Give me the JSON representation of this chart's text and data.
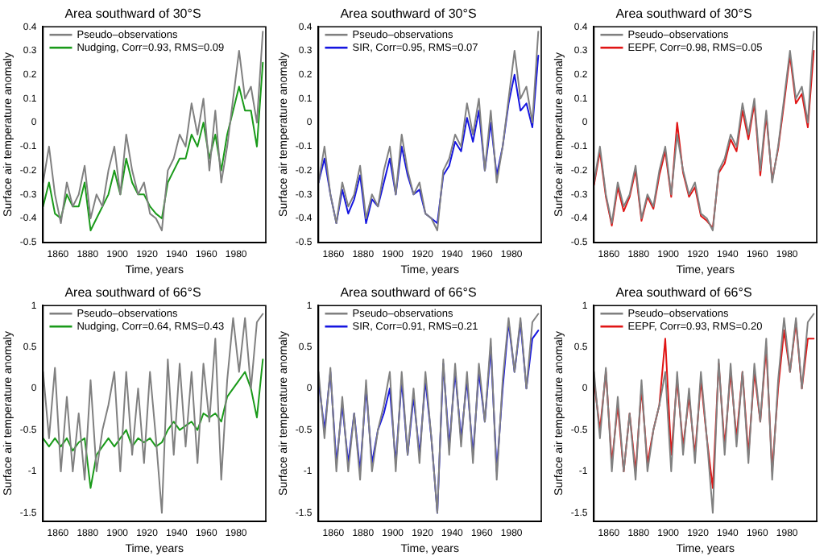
{
  "chart_data": [
    {
      "type": "line",
      "title": "Area southward of 30°S",
      "xlabel": "Time, years",
      "ylabel": "Surface air temperature anomaly",
      "legend": "top left",
      "grid": false,
      "xlim": [
        1850,
        2000
      ],
      "xticks": [
        1860,
        1880,
        1900,
        1920,
        1940,
        1960,
        1980
      ],
      "ylim": [
        -0.5,
        0.4
      ],
      "yticks": [
        -0.5,
        -0.4,
        -0.3,
        -0.2,
        -0.1,
        0,
        0.1,
        0.2,
        0.3,
        0.4
      ],
      "x": [
        1850,
        1854,
        1858,
        1862,
        1866,
        1870,
        1874,
        1878,
        1882,
        1886,
        1890,
        1894,
        1898,
        1902,
        1906,
        1910,
        1914,
        1918,
        1922,
        1926,
        1930,
        1934,
        1938,
        1942,
        1946,
        1950,
        1954,
        1958,
        1962,
        1966,
        1970,
        1974,
        1978,
        1982,
        1986,
        1990,
        1994,
        1998
      ],
      "series": [
        {
          "name": "Pseudo–observations",
          "color": "#808080",
          "values": [
            -0.25,
            -0.1,
            -0.3,
            -0.42,
            -0.25,
            -0.35,
            -0.3,
            -0.18,
            -0.4,
            -0.3,
            -0.35,
            -0.2,
            -0.1,
            -0.3,
            -0.05,
            -0.2,
            -0.3,
            -0.25,
            -0.38,
            -0.4,
            -0.45,
            -0.2,
            -0.15,
            -0.05,
            -0.1,
            0.08,
            -0.05,
            0.1,
            -0.2,
            0.05,
            -0.25,
            -0.1,
            0.1,
            0.3,
            0.1,
            0.15,
            0.0,
            0.38
          ]
        },
        {
          "name": "Nudging, Corr=0.93, RMS=0.09",
          "color": "#1a9a1a",
          "values": [
            -0.35,
            -0.25,
            -0.38,
            -0.4,
            -0.3,
            -0.35,
            -0.35,
            -0.25,
            -0.45,
            -0.4,
            -0.35,
            -0.3,
            -0.2,
            -0.3,
            -0.15,
            -0.25,
            -0.3,
            -0.3,
            -0.35,
            -0.38,
            -0.4,
            -0.25,
            -0.2,
            -0.15,
            -0.15,
            -0.05,
            -0.1,
            0.0,
            -0.15,
            -0.05,
            -0.2,
            -0.05,
            0.05,
            0.15,
            0.05,
            0.05,
            -0.1,
            0.25
          ]
        }
      ]
    },
    {
      "type": "line",
      "title": "Area southward of 30°S",
      "xlabel": "Time, years",
      "ylabel": "Surface air temperature anomaly",
      "legend": "top left",
      "grid": false,
      "xlim": [
        1850,
        2000
      ],
      "xticks": [
        1860,
        1880,
        1900,
        1920,
        1940,
        1960,
        1980
      ],
      "ylim": [
        -0.5,
        0.4
      ],
      "yticks": [
        -0.5,
        -0.4,
        -0.3,
        -0.2,
        -0.1,
        0,
        0.1,
        0.2,
        0.3,
        0.4
      ],
      "x": [
        1850,
        1854,
        1858,
        1862,
        1866,
        1870,
        1874,
        1878,
        1882,
        1886,
        1890,
        1894,
        1898,
        1902,
        1906,
        1910,
        1914,
        1918,
        1922,
        1926,
        1930,
        1934,
        1938,
        1942,
        1946,
        1950,
        1954,
        1958,
        1962,
        1966,
        1970,
        1974,
        1978,
        1982,
        1986,
        1990,
        1994,
        1998
      ],
      "series": [
        {
          "name": "Pseudo–observations",
          "color": "#808080",
          "values": [
            -0.25,
            -0.1,
            -0.3,
            -0.42,
            -0.25,
            -0.35,
            -0.3,
            -0.18,
            -0.4,
            -0.3,
            -0.35,
            -0.2,
            -0.1,
            -0.3,
            -0.05,
            -0.2,
            -0.3,
            -0.25,
            -0.38,
            -0.4,
            -0.45,
            -0.2,
            -0.15,
            -0.05,
            -0.1,
            0.08,
            -0.05,
            0.1,
            -0.2,
            0.05,
            -0.25,
            -0.1,
            0.1,
            0.3,
            0.1,
            0.15,
            0.0,
            0.38
          ]
        },
        {
          "name": "SIR, Corr=0.95, RMS=0.07",
          "color": "#1515e0",
          "values": [
            -0.25,
            -0.15,
            -0.3,
            -0.42,
            -0.28,
            -0.38,
            -0.32,
            -0.22,
            -0.42,
            -0.32,
            -0.35,
            -0.25,
            -0.15,
            -0.3,
            -0.1,
            -0.22,
            -0.3,
            -0.28,
            -0.38,
            -0.4,
            -0.42,
            -0.22,
            -0.18,
            -0.08,
            -0.12,
            0.02,
            -0.08,
            0.05,
            -0.2,
            0.0,
            -0.22,
            -0.1,
            0.08,
            0.2,
            0.05,
            0.08,
            -0.02,
            0.28
          ]
        }
      ]
    },
    {
      "type": "line",
      "title": "Area southward of 30°S",
      "xlabel": "Time, years",
      "ylabel": "Surface air temperature anomaly",
      "legend": "top left",
      "grid": false,
      "xlim": [
        1850,
        2000
      ],
      "xticks": [
        1860,
        1880,
        1900,
        1920,
        1940,
        1960,
        1980
      ],
      "ylim": [
        -0.5,
        0.4
      ],
      "yticks": [
        -0.5,
        -0.4,
        -0.3,
        -0.2,
        -0.1,
        0,
        0.1,
        0.2,
        0.3,
        0.4
      ],
      "x": [
        1850,
        1854,
        1858,
        1862,
        1866,
        1870,
        1874,
        1878,
        1882,
        1886,
        1890,
        1894,
        1898,
        1902,
        1906,
        1910,
        1914,
        1918,
        1922,
        1926,
        1930,
        1934,
        1938,
        1942,
        1946,
        1950,
        1954,
        1958,
        1962,
        1966,
        1970,
        1974,
        1978,
        1982,
        1986,
        1990,
        1994,
        1998
      ],
      "series": [
        {
          "name": "Pseudo–observations",
          "color": "#808080",
          "values": [
            -0.25,
            -0.1,
            -0.3,
            -0.42,
            -0.25,
            -0.35,
            -0.3,
            -0.18,
            -0.4,
            -0.3,
            -0.35,
            -0.2,
            -0.1,
            -0.3,
            -0.05,
            -0.2,
            -0.3,
            -0.25,
            -0.38,
            -0.4,
            -0.45,
            -0.2,
            -0.15,
            -0.05,
            -0.1,
            0.08,
            -0.05,
            0.1,
            -0.2,
            0.05,
            -0.25,
            -0.1,
            0.1,
            0.3,
            0.1,
            0.15,
            0.0,
            0.38
          ]
        },
        {
          "name": "EEPF, Corr=0.98, RMS=0.05",
          "color": "#e01515",
          "values": [
            -0.26,
            -0.12,
            -0.31,
            -0.43,
            -0.27,
            -0.37,
            -0.31,
            -0.2,
            -0.41,
            -0.31,
            -0.36,
            -0.22,
            -0.12,
            -0.31,
            0.0,
            -0.21,
            -0.31,
            -0.27,
            -0.39,
            -0.41,
            -0.44,
            -0.21,
            -0.17,
            -0.07,
            -0.12,
            0.05,
            -0.07,
            0.08,
            -0.22,
            0.03,
            -0.24,
            -0.11,
            0.08,
            0.28,
            0.08,
            0.12,
            -0.02,
            0.3
          ]
        }
      ]
    },
    {
      "type": "line",
      "title": "Area southward of 66°S",
      "xlabel": "Time, years",
      "ylabel": "Surface air temperature anomaly",
      "legend": "top left",
      "grid": false,
      "xlim": [
        1850,
        2000
      ],
      "xticks": [
        1860,
        1880,
        1900,
        1920,
        1940,
        1960,
        1980
      ],
      "ylim": [
        -1.6,
        1
      ],
      "yticks": [
        -1.5,
        -1,
        -0.5,
        0,
        0.5,
        1
      ],
      "x": [
        1850,
        1854,
        1858,
        1862,
        1866,
        1870,
        1874,
        1878,
        1882,
        1886,
        1890,
        1894,
        1898,
        1902,
        1906,
        1910,
        1914,
        1918,
        1922,
        1926,
        1930,
        1934,
        1938,
        1942,
        1946,
        1950,
        1954,
        1958,
        1962,
        1966,
        1970,
        1974,
        1978,
        1982,
        1986,
        1990,
        1994,
        1998
      ],
      "series": [
        {
          "name": "Pseudo–observations",
          "color": "#808080",
          "values": [
            0.2,
            -0.6,
            0.25,
            -1.0,
            -0.1,
            -1.0,
            -0.3,
            -1.1,
            0.1,
            -1.0,
            -0.5,
            -0.2,
            0.2,
            -1.0,
            0.2,
            -0.8,
            0.0,
            -0.9,
            0.2,
            -0.6,
            -1.5,
            0.35,
            -0.8,
            0.3,
            -0.7,
            0.2,
            -0.9,
            0.3,
            -0.4,
            0.6,
            -1.1,
            0.1,
            0.85,
            0.2,
            0.85,
            0.0,
            0.8,
            0.9
          ]
        },
        {
          "name": "Nudging, Corr=0.64, RMS=0.43",
          "color": "#1a9a1a",
          "values": [
            -0.6,
            -0.7,
            -0.6,
            -0.7,
            -0.6,
            -0.75,
            -0.65,
            -0.6,
            -1.2,
            -0.8,
            -0.7,
            -0.6,
            -0.7,
            -0.6,
            -0.5,
            -0.7,
            -0.6,
            -0.65,
            -0.6,
            -0.7,
            -0.65,
            -0.5,
            -0.4,
            -0.5,
            -0.45,
            -0.4,
            -0.5,
            -0.3,
            -0.35,
            -0.3,
            -0.4,
            -0.1,
            0.0,
            0.1,
            0.2,
            0.0,
            -0.35,
            0.35
          ]
        }
      ]
    },
    {
      "type": "line",
      "title": "Area southward of 66°S",
      "xlabel": "Time, years",
      "ylabel": "Surface air temperature anomaly",
      "legend": "top left",
      "grid": false,
      "xlim": [
        1850,
        2000
      ],
      "xticks": [
        1860,
        1880,
        1900,
        1920,
        1940,
        1960,
        1980
      ],
      "ylim": [
        -1.6,
        1
      ],
      "yticks": [
        -1.5,
        -1,
        -0.5,
        0,
        0.5,
        1
      ],
      "x": [
        1850,
        1854,
        1858,
        1862,
        1866,
        1870,
        1874,
        1878,
        1882,
        1886,
        1890,
        1894,
        1898,
        1902,
        1906,
        1910,
        1914,
        1918,
        1922,
        1926,
        1930,
        1934,
        1938,
        1942,
        1946,
        1950,
        1954,
        1958,
        1962,
        1966,
        1970,
        1974,
        1978,
        1982,
        1986,
        1990,
        1994,
        1998
      ],
      "series": [
        {
          "name": "Pseudo–observations",
          "color": "#808080",
          "values": [
            0.2,
            -0.6,
            0.25,
            -1.0,
            -0.1,
            -1.0,
            -0.3,
            -1.1,
            0.1,
            -1.0,
            -0.5,
            -0.2,
            0.2,
            -1.0,
            0.2,
            -0.8,
            0.0,
            -0.9,
            0.2,
            -0.6,
            -1.5,
            0.35,
            -0.8,
            0.3,
            -0.7,
            0.2,
            -0.9,
            0.3,
            -0.4,
            0.6,
            -1.1,
            0.1,
            0.85,
            0.2,
            0.85,
            0.0,
            0.8,
            0.9
          ]
        },
        {
          "name": "SIR, Corr=0.91, RMS=0.21",
          "color": "#1515e0",
          "values": [
            0.1,
            -0.5,
            0.2,
            -0.9,
            -0.2,
            -0.9,
            -0.3,
            -1.0,
            0.0,
            -0.9,
            -0.5,
            -0.3,
            0.0,
            -0.9,
            0.1,
            -0.8,
            -0.1,
            -0.8,
            0.1,
            -0.6,
            -1.5,
            0.3,
            -0.7,
            0.2,
            -0.6,
            0.1,
            -0.8,
            0.2,
            -0.4,
            0.5,
            -1.0,
            0.0,
            0.8,
            0.2,
            0.8,
            0.0,
            0.6,
            0.7
          ]
        }
      ]
    },
    {
      "type": "line",
      "title": "Area southward of 66°S",
      "xlabel": "Time, years",
      "ylabel": "Surface air temperature anomaly",
      "legend": "top left",
      "grid": false,
      "xlim": [
        1850,
        2000
      ],
      "xticks": [
        1860,
        1880,
        1900,
        1920,
        1940,
        1960,
        1980
      ],
      "ylim": [
        -1.6,
        1
      ],
      "yticks": [
        -1.5,
        -1,
        -0.5,
        0,
        0.5,
        1
      ],
      "x": [
        1850,
        1854,
        1858,
        1862,
        1866,
        1870,
        1874,
        1878,
        1882,
        1886,
        1890,
        1894,
        1898,
        1902,
        1906,
        1910,
        1914,
        1918,
        1922,
        1926,
        1930,
        1934,
        1938,
        1942,
        1946,
        1950,
        1954,
        1958,
        1962,
        1966,
        1970,
        1974,
        1978,
        1982,
        1986,
        1990,
        1994,
        1998
      ],
      "series": [
        {
          "name": "Pseudo–observations",
          "color": "#808080",
          "values": [
            0.2,
            -0.6,
            0.25,
            -1.0,
            -0.1,
            -1.0,
            -0.3,
            -1.1,
            0.1,
            -1.0,
            -0.5,
            -0.2,
            0.2,
            -1.0,
            0.2,
            -0.8,
            0.0,
            -0.9,
            0.2,
            -0.6,
            -1.5,
            0.35,
            -0.8,
            0.3,
            -0.7,
            0.2,
            -0.9,
            0.3,
            -0.4,
            0.6,
            -1.1,
            0.1,
            0.85,
            0.2,
            0.85,
            0.0,
            0.8,
            0.9
          ]
        },
        {
          "name": "EEPF, Corr=0.93, RMS=0.20",
          "color": "#e01515",
          "values": [
            0.1,
            -0.5,
            0.2,
            -0.9,
            -0.2,
            -1.0,
            -0.3,
            -1.0,
            0.0,
            -0.9,
            -0.5,
            -0.2,
            0.6,
            -0.8,
            0.1,
            -0.7,
            -0.1,
            -0.8,
            0.1,
            -0.6,
            -1.2,
            0.3,
            -0.7,
            0.2,
            -0.6,
            0.2,
            -0.8,
            0.2,
            -0.4,
            0.5,
            -1.0,
            0.0,
            0.7,
            0.2,
            0.8,
            0.0,
            0.6,
            0.6
          ]
        }
      ]
    }
  ]
}
